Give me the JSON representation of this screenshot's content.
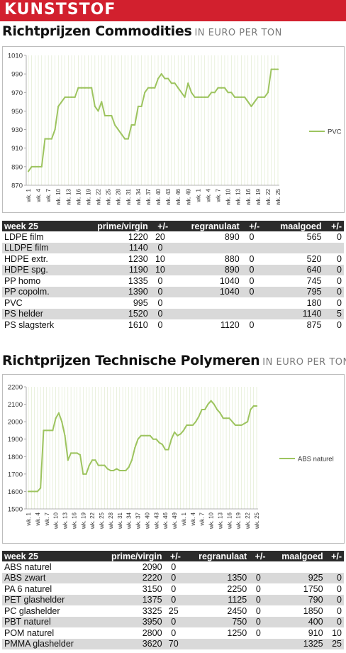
{
  "header": {
    "title": "KUNSTSTOF"
  },
  "section1": {
    "title": "Richtprijzen Commodities",
    "unit": "IN EURO PER TON"
  },
  "section2": {
    "title": "Richtprijzen Technische Polymeren",
    "unit": "IN EURO PER TON"
  },
  "colors": {
    "banner": "#d2202e",
    "line": "#9dc45f",
    "table_header": "#2b2b2b",
    "row_alt": "#d9d9d9"
  },
  "table_headers": {
    "week": "week 25",
    "prime": "prime/virgin",
    "pm": "+/-",
    "regranulaat": "regranulaat",
    "maalgoed": "maalgoed"
  },
  "table1": [
    {
      "name": "LDPE film",
      "prime": "1220",
      "d1": "20",
      "regr": "890",
      "d2": "0",
      "maal": "565",
      "d3": "0"
    },
    {
      "name": "LLDPE film",
      "prime": "1140",
      "d1": "0",
      "regr": "",
      "d2": "",
      "maal": "",
      "d3": ""
    },
    {
      "name": "HDPE extr.",
      "prime": "1230",
      "d1": "10",
      "regr": "880",
      "d2": "0",
      "maal": "520",
      "d3": "0"
    },
    {
      "name": "HDPE spg.",
      "prime": "1190",
      "d1": "10",
      "regr": "890",
      "d2": "0",
      "maal": "640",
      "d3": "0"
    },
    {
      "name": "PP homo",
      "prime": "1335",
      "d1": "0",
      "regr": "1040",
      "d2": "0",
      "maal": "745",
      "d3": "0"
    },
    {
      "name": "PP copolm.",
      "prime": "1390",
      "d1": "0",
      "regr": "1040",
      "d2": "0",
      "maal": "795",
      "d3": "0"
    },
    {
      "name": "PVC",
      "prime": "995",
      "d1": "0",
      "regr": "",
      "d2": "",
      "maal": "180",
      "d3": "0"
    },
    {
      "name": "PS helder",
      "prime": "1520",
      "d1": "0",
      "regr": "",
      "d2": "",
      "maal": "1140",
      "d3": "5"
    },
    {
      "name": "PS slagsterk",
      "prime": "1610",
      "d1": "0",
      "regr": "1120",
      "d2": "0",
      "maal": "875",
      "d3": "0"
    }
  ],
  "table2": [
    {
      "name": "ABS naturel",
      "prime": "2090",
      "d1": "0",
      "regr": "",
      "d2": "",
      "maal": "",
      "d3": ""
    },
    {
      "name": "ABS zwart",
      "prime": "2220",
      "d1": "0",
      "regr": "1350",
      "d2": "0",
      "maal": "925",
      "d3": "0"
    },
    {
      "name": "PA 6 naturel",
      "prime": "3150",
      "d1": "0",
      "regr": "2250",
      "d2": "0",
      "maal": "1750",
      "d3": "0"
    },
    {
      "name": "PET glashelder",
      "prime": "1375",
      "d1": "0",
      "regr": "1125",
      "d2": "0",
      "maal": "790",
      "d3": "0"
    },
    {
      "name": "PC glashelder",
      "prime": "3325",
      "d1": "25",
      "regr": "2450",
      "d2": "0",
      "maal": "1850",
      "d3": "0"
    },
    {
      "name": "PBT naturel",
      "prime": "3950",
      "d1": "0",
      "regr": "750",
      "d2": "0",
      "maal": "400",
      "d3": "0"
    },
    {
      "name": "POM naturel",
      "prime": "2800",
      "d1": "0",
      "regr": "1250",
      "d2": "0",
      "maal": "910",
      "d3": "10"
    },
    {
      "name": "PMMA glashelder",
      "prime": "3620",
      "d1": "70",
      "regr": "",
      "d2": "",
      "maal": "1325",
      "d3": "25"
    }
  ],
  "chart_data": [
    {
      "type": "line",
      "title": "",
      "xlabel": "",
      "ylabel": "",
      "ylim": [
        870,
        1010
      ],
      "yticks": [
        870,
        890,
        910,
        930,
        950,
        970,
        990,
        1010
      ],
      "legend": "right",
      "grid": "vertical",
      "xtick_labels": [
        "wk. 1",
        "wk. 4",
        "wk. 7",
        "wk. 10",
        "wk. 13",
        "wk. 16",
        "wk. 19",
        "wk. 22",
        "wk. 25",
        "wk. 28",
        "wk. 31",
        "wk. 34",
        "wk. 37",
        "wk. 40",
        "wk. 43",
        "wk. 46",
        "wk. 49",
        "wk. 1",
        "wk. 4",
        "wk. 7",
        "wk. 10",
        "wk. 13",
        "wk. 16",
        "wk. 19",
        "wk. 22",
        "wk. 25"
      ],
      "series": [
        {
          "name": "PVC",
          "color": "#9dc45f",
          "values": [
            885,
            890,
            890,
            890,
            890,
            920,
            920,
            920,
            930,
            955,
            960,
            965,
            965,
            965,
            965,
            975,
            975,
            975,
            975,
            975,
            955,
            950,
            960,
            945,
            945,
            945,
            935,
            930,
            925,
            920,
            920,
            935,
            935,
            955,
            955,
            970,
            975,
            975,
            975,
            985,
            990,
            985,
            985,
            980,
            980,
            975,
            970,
            965,
            980,
            970,
            965,
            965,
            965,
            965,
            965,
            970,
            970,
            975,
            975,
            975,
            970,
            970,
            965,
            965,
            965,
            965,
            960,
            955,
            960,
            965,
            965,
            965,
            970,
            995,
            995,
            995
          ]
        }
      ]
    },
    {
      "type": "line",
      "title": "",
      "xlabel": "",
      "ylabel": "",
      "ylim": [
        1500,
        2200
      ],
      "yticks": [
        1500,
        1600,
        1700,
        1800,
        1900,
        2000,
        2100,
        2200
      ],
      "legend": "right",
      "grid": "vertical",
      "xtick_labels": [
        "wk. 1",
        "wk. 4",
        "wk. 7",
        "wk. 10",
        "wk. 13",
        "wk. 16",
        "wk. 19",
        "wk. 22",
        "wk. 25",
        "wk. 28",
        "wk. 31",
        "wk. 34",
        "wk. 37",
        "wk. 40",
        "wk. 43",
        "wk. 46",
        "wk. 49",
        "wk. 1",
        "wk. 4",
        "wk. 7",
        "wk. 10",
        "wk. 13",
        "wk. 16",
        "wk. 19",
        "wk. 22",
        "wk. 25"
      ],
      "series": [
        {
          "name": "ABS naturel",
          "color": "#9dc45f",
          "values": [
            1600,
            1600,
            1600,
            1600,
            1620,
            1950,
            1950,
            1950,
            1950,
            2020,
            2050,
            2000,
            1920,
            1780,
            1820,
            1820,
            1820,
            1810,
            1700,
            1700,
            1750,
            1780,
            1780,
            1750,
            1750,
            1750,
            1730,
            1720,
            1720,
            1730,
            1720,
            1720,
            1720,
            1740,
            1780,
            1850,
            1900,
            1920,
            1920,
            1920,
            1920,
            1900,
            1900,
            1880,
            1870,
            1840,
            1840,
            1900,
            1940,
            1920,
            1930,
            1950,
            1980,
            1980,
            1980,
            2000,
            2030,
            2070,
            2070,
            2100,
            2120,
            2100,
            2070,
            2050,
            2020,
            2020,
            2020,
            2000,
            1980,
            1980,
            1980,
            1990,
            2000,
            2070,
            2090,
            2090
          ]
        }
      ]
    }
  ]
}
